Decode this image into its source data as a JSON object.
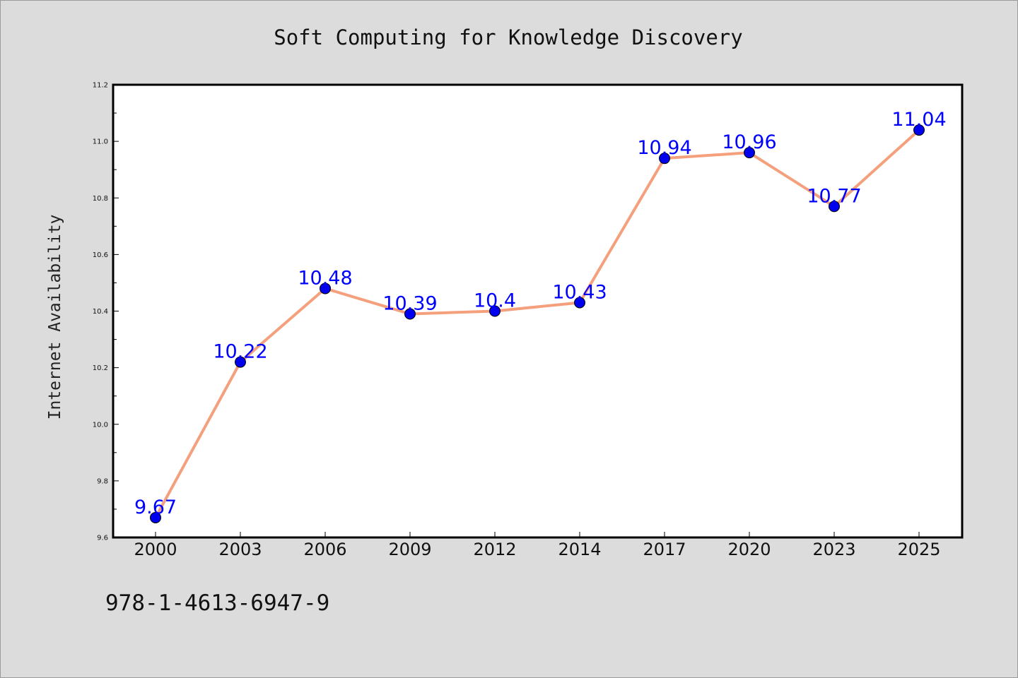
{
  "chart_data": {
    "type": "line",
    "title": "Soft Computing for Knowledge Discovery",
    "xlabel": "",
    "ylabel": "Internet Availability",
    "categories": [
      "2000",
      "2003",
      "2006",
      "2009",
      "2012",
      "2014",
      "2017",
      "2020",
      "2023",
      "2025"
    ],
    "series": [
      {
        "values": [
          9.67,
          10.22,
          10.48,
          10.39,
          10.4,
          10.43,
          10.94,
          10.96,
          10.77,
          11.04
        ],
        "labels": [
          "9.67",
          "10.22",
          "10.48",
          "10.39",
          "10.4",
          "10.43",
          "10.94",
          "10.96",
          "10.77",
          "11.04"
        ],
        "line_color": "#f4a07c",
        "marker_color": "#0000ee"
      }
    ],
    "ylim": [
      9.6,
      11.2
    ],
    "yticks": [
      9.6,
      9.8,
      10.0,
      10.2,
      10.4,
      10.6,
      10.8,
      11.0,
      11.2
    ],
    "ytick_labels": [
      "9.6",
      "9.8",
      "10.0",
      "10.2",
      "10.4",
      "10.6",
      "10.8",
      "11.0",
      "11.2"
    ],
    "grid": false,
    "legend": "none",
    "background_color": "#dcdcdc",
    "plot_background_color": "#ffffff",
    "label_color": "#0000ff"
  },
  "footer": {
    "isbn": "978-1-4613-6947-9"
  }
}
